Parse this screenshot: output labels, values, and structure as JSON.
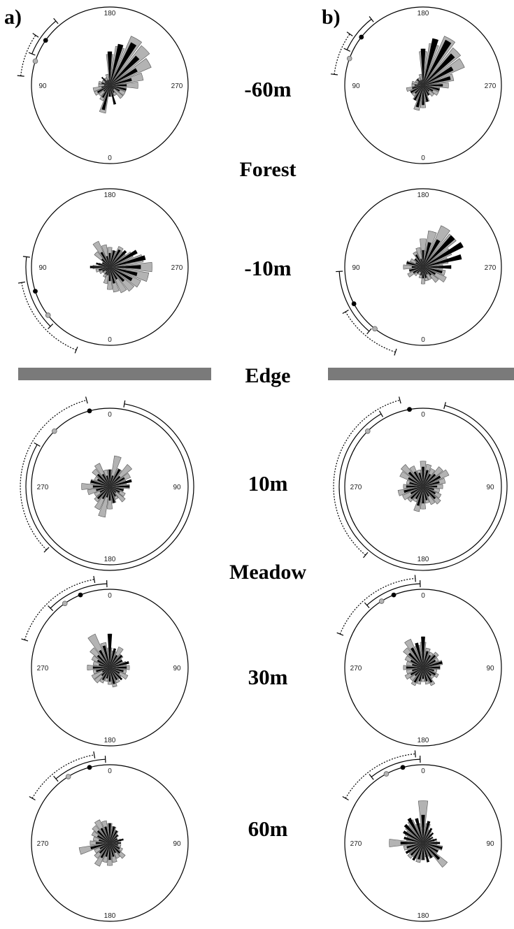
{
  "panels": [
    "a)",
    "b)"
  ],
  "habitats": {
    "forest": "Forest",
    "edge": "Edge",
    "meadow": "Meadow"
  },
  "colors": {
    "gray": "#b3b3b3",
    "black": "#000000",
    "edge_bar": "#7a7a7a"
  },
  "chart_data": [
    {
      "type": "rose",
      "panel": "a)",
      "distance": "-60m",
      "direction_labels": {
        "top": "180",
        "right": "270",
        "bottom": "0",
        "left": "90"
      },
      "gray_wedges": [
        0.55,
        0.7,
        0.95,
        0.9,
        0.8,
        0.6,
        0.5,
        0.3,
        0.3,
        0.3,
        0.2,
        0.2,
        0.2,
        0.5,
        0.3,
        0.25,
        0.3,
        0.3,
        0.2,
        0.2,
        0.15,
        0.15,
        0.15,
        0.2
      ],
      "black_wedges": [
        0.6,
        0.75,
        0.85,
        0.7,
        0.55,
        0.4,
        0.3,
        0.3,
        0.2,
        0.1,
        0.15,
        0.35,
        0.2,
        0.45,
        0.25,
        0.15,
        0.25,
        0.15,
        0.1,
        0.15,
        0.1,
        0.2,
        0.1,
        0.1
      ],
      "mean_black_deg": 125,
      "mean_gray_deg": 108,
      "interval_black_deg": [
        112,
        140
      ],
      "interval_gray_deg": [
        96,
        124
      ]
    },
    {
      "type": "rose",
      "panel": "b)",
      "distance": "-60m",
      "direction_labels": {
        "top": "180",
        "right": "270",
        "bottom": "0",
        "left": "90"
      },
      "gray_wedges": [
        0.6,
        0.75,
        0.95,
        0.85,
        0.8,
        0.55,
        0.45,
        0.3,
        0.3,
        0.25,
        0.2,
        0.3,
        0.4,
        0.45,
        0.3,
        0.25,
        0.25,
        0.3,
        0.2,
        0.2,
        0.15,
        0.15,
        0.15,
        0.2
      ],
      "black_wedges": [
        0.65,
        0.85,
        0.9,
        0.75,
        0.6,
        0.5,
        0.35,
        0.3,
        0.2,
        0.15,
        0.2,
        0.3,
        0.35,
        0.4,
        0.3,
        0.2,
        0.25,
        0.2,
        0.15,
        0.1,
        0.1,
        0.15,
        0.1,
        0.1
      ],
      "mean_black_deg": 128,
      "mean_gray_deg": 110,
      "interval_black_deg": [
        115,
        142
      ],
      "interval_gray_deg": [
        97,
        125
      ]
    },
    {
      "type": "rose",
      "panel": "a)",
      "distance": "-10m",
      "direction_labels": {
        "top": "180",
        "right": "270",
        "bottom": "0",
        "left": "90"
      },
      "gray_wedges": [
        0.35,
        0.3,
        0.4,
        0.35,
        0.45,
        0.6,
        0.75,
        0.7,
        0.6,
        0.55,
        0.5,
        0.45,
        0.4,
        0.3,
        0.2,
        0.15,
        0.2,
        0.25,
        0.3,
        0.2,
        0.15,
        0.35,
        0.5,
        0.4
      ],
      "black_wedges": [
        0.25,
        0.3,
        0.35,
        0.4,
        0.55,
        0.65,
        0.55,
        0.5,
        0.45,
        0.35,
        0.25,
        0.3,
        0.25,
        0.15,
        0.15,
        0.1,
        0.15,
        0.2,
        0.35,
        0.25,
        0.15,
        0.2,
        0.3,
        0.2
      ],
      "mean_black_deg": 72,
      "mean_gray_deg": 52,
      "interval_black_deg": [
        45,
        97
      ],
      "interval_gray_deg": [
        22,
        80
      ]
    },
    {
      "type": "rose",
      "panel": "b)",
      "distance": "-10m",
      "direction_labels": {
        "top": "180",
        "right": "270",
        "bottom": "0",
        "left": "90"
      },
      "gray_wedges": [
        0.5,
        0.65,
        0.8,
        0.75,
        0.55,
        0.45,
        0.35,
        0.4,
        0.45,
        0.35,
        0.25,
        0.25,
        0.3,
        0.2,
        0.15,
        0.2,
        0.3,
        0.25,
        0.35,
        0.3,
        0.25,
        0.2,
        0.3,
        0.35
      ],
      "black_wedges": [
        0.3,
        0.45,
        0.55,
        0.75,
        0.8,
        0.7,
        0.5,
        0.35,
        0.25,
        0.2,
        0.15,
        0.2,
        0.2,
        0.15,
        0.1,
        0.15,
        0.2,
        0.25,
        0.2,
        0.3,
        0.15,
        0.2,
        0.25,
        0.15
      ],
      "mean_black_deg": 62,
      "mean_gray_deg": 38,
      "interval_black_deg": [
        40,
        87
      ],
      "interval_gray_deg": [
        18,
        60
      ]
    },
    {
      "type": "rose",
      "panel": "a)",
      "distance": "10m",
      "direction_labels": {
        "top": "0",
        "right": "90",
        "bottom": "180",
        "left": "270"
      },
      "gray_wedges": [
        0.3,
        0.55,
        0.35,
        0.5,
        0.4,
        0.3,
        0.35,
        0.25,
        0.3,
        0.35,
        0.25,
        0.3,
        0.4,
        0.55,
        0.45,
        0.35,
        0.3,
        0.4,
        0.5,
        0.35,
        0.3,
        0.4,
        0.45,
        0.3
      ],
      "black_wedges": [
        0.3,
        0.2,
        0.35,
        0.25,
        0.3,
        0.4,
        0.35,
        0.25,
        0.2,
        0.15,
        0.2,
        0.3,
        0.25,
        0.2,
        0.25,
        0.3,
        0.2,
        0.25,
        0.3,
        0.35,
        0.25,
        0.3,
        0.25,
        0.2
      ],
      "mean_black_deg": 345,
      "mean_gray_deg": 315,
      "interval_black_deg": [
        300,
        10
      ],
      "interval_gray_deg": [
        225,
        345
      ]
    },
    {
      "type": "rose",
      "panel": "b)",
      "distance": "10m",
      "direction_labels": {
        "top": "0",
        "right": "90",
        "bottom": "180",
        "left": "270"
      },
      "gray_wedges": [
        0.45,
        0.4,
        0.35,
        0.45,
        0.5,
        0.4,
        0.35,
        0.3,
        0.35,
        0.4,
        0.35,
        0.3,
        0.4,
        0.45,
        0.3,
        0.35,
        0.4,
        0.45,
        0.35,
        0.3,
        0.45,
        0.5,
        0.4,
        0.3
      ],
      "black_wedges": [
        0.35,
        0.3,
        0.25,
        0.3,
        0.35,
        0.3,
        0.25,
        0.2,
        0.25,
        0.3,
        0.2,
        0.25,
        0.3,
        0.35,
        0.25,
        0.3,
        0.25,
        0.35,
        0.3,
        0.25,
        0.3,
        0.35,
        0.3,
        0.25
      ],
      "mean_black_deg": 350,
      "mean_gray_deg": 315,
      "interval_black_deg": [
        330,
        15
      ],
      "interval_gray_deg": [
        220,
        345
      ]
    },
    {
      "type": "rose",
      "panel": "a)",
      "distance": "30m",
      "direction_labels": {
        "top": "0",
        "right": "90",
        "bottom": "180",
        "left": "270"
      },
      "gray_wedges": [
        0.35,
        0.3,
        0.4,
        0.3,
        0.25,
        0.3,
        0.35,
        0.3,
        0.35,
        0.25,
        0.3,
        0.35,
        0.3,
        0.25,
        0.3,
        0.35,
        0.35,
        0.3,
        0.4,
        0.3,
        0.35,
        0.45,
        0.65,
        0.45
      ],
      "black_wedges": [
        0.6,
        0.35,
        0.25,
        0.3,
        0.25,
        0.35,
        0.3,
        0.25,
        0.2,
        0.3,
        0.25,
        0.3,
        0.25,
        0.2,
        0.25,
        0.2,
        0.15,
        0.25,
        0.3,
        0.2,
        0.25,
        0.3,
        0.35,
        0.4
      ],
      "mean_black_deg": 338,
      "mean_gray_deg": 325,
      "interval_black_deg": [
        315,
        358
      ],
      "interval_gray_deg": [
        288,
        350
      ]
    },
    {
      "type": "rose",
      "panel": "b)",
      "distance": "30m",
      "direction_labels": {
        "top": "0",
        "right": "90",
        "bottom": "180",
        "left": "270"
      },
      "gray_wedges": [
        0.45,
        0.35,
        0.3,
        0.35,
        0.3,
        0.35,
        0.3,
        0.25,
        0.3,
        0.25,
        0.35,
        0.3,
        0.25,
        0.3,
        0.35,
        0.3,
        0.35,
        0.3,
        0.35,
        0.3,
        0.35,
        0.45,
        0.55,
        0.4
      ],
      "black_wedges": [
        0.55,
        0.3,
        0.25,
        0.3,
        0.25,
        0.35,
        0.3,
        0.2,
        0.25,
        0.2,
        0.3,
        0.25,
        0.2,
        0.25,
        0.3,
        0.2,
        0.25,
        0.2,
        0.3,
        0.2,
        0.25,
        0.35,
        0.4,
        0.45
      ],
      "mean_black_deg": 338,
      "mean_gray_deg": 328,
      "interval_black_deg": [
        318,
        358
      ],
      "interval_gray_deg": [
        292,
        355
      ]
    },
    {
      "type": "rose",
      "panel": "a)",
      "distance": "60m",
      "direction_labels": {
        "top": "0",
        "right": "90",
        "bottom": "180",
        "left": "270"
      },
      "gray_wedges": [
        0.35,
        0.3,
        0.25,
        0.2,
        0.15,
        0.2,
        0.15,
        0.2,
        0.25,
        0.35,
        0.3,
        0.35,
        0.4,
        0.35,
        0.45,
        0.35,
        0.3,
        0.55,
        0.35,
        0.3,
        0.35,
        0.4,
        0.45,
        0.4
      ],
      "black_wedges": [
        0.35,
        0.3,
        0.25,
        0.2,
        0.15,
        0.25,
        0.2,
        0.15,
        0.2,
        0.25,
        0.2,
        0.25,
        0.3,
        0.25,
        0.3,
        0.25,
        0.2,
        0.35,
        0.25,
        0.2,
        0.25,
        0.3,
        0.3,
        0.3
      ],
      "mean_black_deg": 345,
      "mean_gray_deg": 328,
      "interval_black_deg": [
        320,
        357
      ],
      "interval_gray_deg": [
        300,
        350
      ]
    },
    {
      "type": "rose",
      "panel": "b)",
      "distance": "60m",
      "direction_labels": {
        "top": "0",
        "right": "90",
        "bottom": "180",
        "left": "270"
      },
      "gray_wedges": [
        0.75,
        0.35,
        0.25,
        0.2,
        0.15,
        0.2,
        0.25,
        0.35,
        0.3,
        0.55,
        0.3,
        0.25,
        0.3,
        0.35,
        0.3,
        0.35,
        0.3,
        0.35,
        0.6,
        0.3,
        0.35,
        0.4,
        0.45,
        0.35
      ],
      "black_wedges": [
        0.5,
        0.4,
        0.3,
        0.25,
        0.2,
        0.25,
        0.3,
        0.35,
        0.3,
        0.4,
        0.3,
        0.35,
        0.3,
        0.3,
        0.35,
        0.3,
        0.35,
        0.3,
        0.4,
        0.35,
        0.4,
        0.45,
        0.5,
        0.45
      ],
      "mean_black_deg": 345,
      "mean_gray_deg": 332,
      "interval_black_deg": [
        322,
        358
      ],
      "interval_gray_deg": [
        300,
        355
      ]
    }
  ]
}
